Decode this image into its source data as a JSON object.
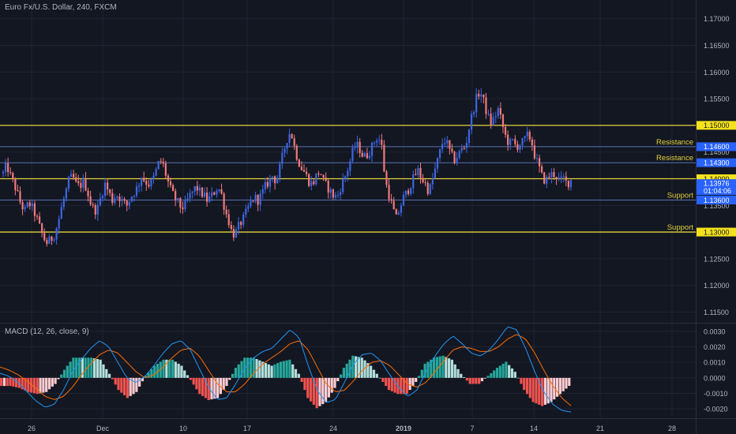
{
  "header": {
    "symbol_title": "Euro Fx/U.S. Dollar, 240, FXCM",
    "indicator_title": "MACD (12, 26, close, 9)"
  },
  "colors": {
    "background": "#131722",
    "grid": "#1f2333",
    "up_candle": "#3d66e0",
    "down_candle": "#f07a7a",
    "level_major": "#e3d23c",
    "level_minor": "#5a6fb0",
    "axis_text": "#b2b5be",
    "label_blue": "#2962ff",
    "label_yellow": "#f5e21d",
    "macd_line": "#2196f3",
    "signal_line": "#ff6d00",
    "hist_pos_strong": "#26a69a",
    "hist_pos_weak": "#b2dfdb",
    "hist_neg_strong": "#ef5350",
    "hist_neg_weak": "#ffcdd2"
  },
  "chart_data": [
    {
      "type": "candlestick",
      "title": "Euro Fx/U.S. Dollar, 240, FXCM",
      "ylim": [
        1.113,
        1.1735
      ],
      "y_ticks": [
        "1.17000",
        "1.16500",
        "1.16000",
        "1.15500",
        "1.15000",
        "1.14500",
        "1.14000",
        "1.13500",
        "1.13000",
        "1.12500",
        "1.12000",
        "1.11500"
      ],
      "y_tick_values": [
        1.17,
        1.165,
        1.16,
        1.155,
        1.15,
        1.145,
        1.14,
        1.135,
        1.13,
        1.125,
        1.12,
        1.115
      ],
      "x_ticks": [
        "26",
        "Dec",
        "10",
        "17",
        "24",
        "2019",
        "7",
        "14",
        "21",
        "28"
      ],
      "x_tick_bold": [
        false,
        false,
        false,
        false,
        false,
        true,
        false,
        false,
        false,
        false
      ],
      "levels": [
        {
          "value": 1.15,
          "label": "1.15000",
          "style": "major"
        },
        {
          "value": 1.146,
          "label": "1.14600",
          "style": "minor",
          "text": "Resistance"
        },
        {
          "value": 1.143,
          "label": "1.14300",
          "style": "minor",
          "text": "Resistance"
        },
        {
          "value": 1.14,
          "label": "1.14000",
          "style": "major"
        },
        {
          "value": 1.136,
          "label": "1.13600",
          "style": "minor",
          "text": "Support"
        },
        {
          "value": 1.13,
          "label": "1.13000",
          "style": "major",
          "text": "Support"
        }
      ],
      "current_price": {
        "value": 1.13976,
        "label": "1.13976",
        "countdown": "01:04:06"
      },
      "close_path": [
        1.141,
        1.1425,
        1.1405,
        1.139,
        1.137,
        1.135,
        1.134,
        1.1355,
        1.1345,
        1.133,
        1.131,
        1.129,
        1.128,
        1.1285,
        1.1295,
        1.1315,
        1.1345,
        1.137,
        1.1395,
        1.1405,
        1.139,
        1.1385,
        1.1395,
        1.138,
        1.1355,
        1.134,
        1.1345,
        1.137,
        1.139,
        1.1375,
        1.136,
        1.137,
        1.1365,
        1.1355,
        1.135,
        1.1365,
        1.1375,
        1.1385,
        1.1405,
        1.1395,
        1.139,
        1.1395,
        1.1415,
        1.1435,
        1.1425,
        1.14,
        1.138,
        1.1365,
        1.1355,
        1.1345,
        1.135,
        1.1365,
        1.1375,
        1.1385,
        1.1375,
        1.137,
        1.136,
        1.1365,
        1.1375,
        1.1385,
        1.137,
        1.134,
        1.132,
        1.1295,
        1.13,
        1.1315,
        1.1325,
        1.134,
        1.1355,
        1.1365,
        1.136,
        1.137,
        1.1385,
        1.1395,
        1.1405,
        1.1395,
        1.142,
        1.145,
        1.1475,
        1.149,
        1.146,
        1.1435,
        1.142,
        1.141,
        1.1395,
        1.139,
        1.1405,
        1.1415,
        1.1395,
        1.1385,
        1.1375,
        1.1365,
        1.137,
        1.139,
        1.1405,
        1.1425,
        1.145,
        1.1465,
        1.1455,
        1.144,
        1.1445,
        1.1455,
        1.147,
        1.148,
        1.146,
        1.1395,
        1.137,
        1.1345,
        1.1325,
        1.1345,
        1.1365,
        1.1375,
        1.139,
        1.1405,
        1.1415,
        1.14,
        1.139,
        1.1375,
        1.14,
        1.1425,
        1.145,
        1.1475,
        1.1465,
        1.1445,
        1.1435,
        1.1445,
        1.1455,
        1.146,
        1.1495,
        1.1525,
        1.155,
        1.1565,
        1.1545,
        1.152,
        1.1505,
        1.1515,
        1.153,
        1.1505,
        1.148,
        1.1465,
        1.147,
        1.146,
        1.1465,
        1.147,
        1.148,
        1.1475,
        1.1445,
        1.1425,
        1.1405,
        1.1395,
        1.1405,
        1.141,
        1.1405,
        1.1395,
        1.14,
        1.139,
        1.1398
      ]
    },
    {
      "type": "macd",
      "title": "MACD (12, 26, close, 9)",
      "ylim": [
        -0.0026,
        0.0035
      ],
      "y_ticks": [
        "0.0030",
        "0.0020",
        "0.0010",
        "0.0000",
        "-0.0010",
        "-0.0020"
      ],
      "y_tick_values": [
        0.003,
        0.002,
        0.001,
        0,
        -0.001,
        -0.002
      ],
      "macd_path": [
        0.0003,
        0.0001,
        -0.0003,
        -0.0009,
        -0.0015,
        -0.0019,
        -0.0017,
        -0.0008,
        0.0004,
        0.0012,
        0.0019,
        0.0024,
        0.002,
        0.001,
        0.0,
        -0.0003,
        0.0001,
        0.0008,
        0.0016,
        0.0022,
        0.0024,
        0.0018,
        0.0006,
        -0.0006,
        -0.0014,
        -0.0013,
        -0.0004,
        0.0006,
        0.0013,
        0.0017,
        0.0019,
        0.0025,
        0.0031,
        0.0026,
        0.0008,
        -0.0008,
        -0.0016,
        -0.0014,
        -0.0003,
        0.0009,
        0.0015,
        0.0016,
        0.0011,
        0.0002,
        -0.0006,
        -0.0012,
        -0.0008,
        0.0004,
        0.0014,
        0.0022,
        0.0027,
        0.0022,
        0.0016,
        0.0014,
        0.0018,
        0.0025,
        0.0033,
        0.0031,
        0.0019,
        0.0004,
        -0.0009,
        -0.0017,
        -0.0021,
        -0.0022
      ],
      "signal_path": [
        0.0007,
        0.0005,
        0.0002,
        -0.0002,
        -0.0007,
        -0.0012,
        -0.0014,
        -0.0012,
        -0.0006,
        0.0002,
        0.0009,
        0.0015,
        0.0018,
        0.0016,
        0.001,
        0.0004,
        0.0,
        0.0002,
        0.0007,
        0.0013,
        0.0018,
        0.0019,
        0.0014,
        0.0005,
        -0.0004,
        -0.0009,
        -0.0009,
        -0.0004,
        0.0003,
        0.0009,
        0.0013,
        0.0017,
        0.0022,
        0.0024,
        0.0018,
        0.0007,
        -0.0004,
        -0.0009,
        -0.0008,
        -0.0002,
        0.0005,
        0.001,
        0.0011,
        0.0008,
        0.0002,
        -0.0004,
        -0.0006,
        -0.0003,
        0.0004,
        0.0011,
        0.0018,
        0.002,
        0.0019,
        0.0017,
        0.0017,
        0.002,
        0.0025,
        0.0028,
        0.0025,
        0.0016,
        0.0005,
        -0.0005,
        -0.0013,
        -0.0018
      ]
    }
  ]
}
